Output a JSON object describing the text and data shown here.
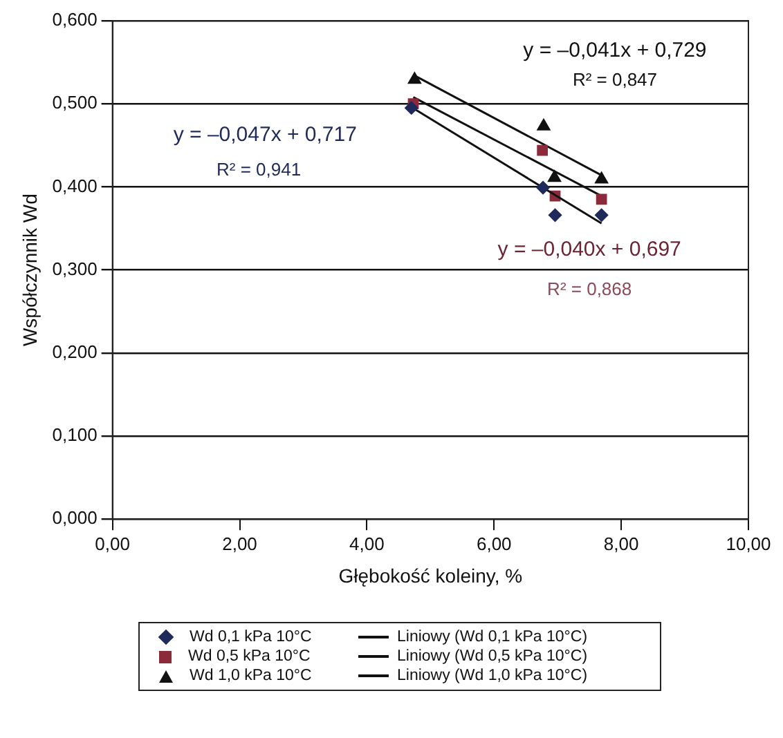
{
  "chart_data": {
    "type": "scatter",
    "xlabel": "Głębokość koleiny, %",
    "ylabel": "Współczynnik Wd",
    "xlim": [
      0,
      10
    ],
    "xticks": [
      {
        "value": 0,
        "label": "0,00"
      },
      {
        "value": 2,
        "label": "2,00"
      },
      {
        "value": 4,
        "label": "4,00"
      },
      {
        "value": 6,
        "label": "6,00"
      },
      {
        "value": 8,
        "label": "8,00"
      },
      {
        "value": 10,
        "label": "10,00"
      }
    ],
    "ylim": [
      0,
      0.6
    ],
    "yticks": [
      {
        "value": 0,
        "label": "0,000"
      },
      {
        "value": 0.1,
        "label": "0,100"
      },
      {
        "value": 0.2,
        "label": "0,200"
      },
      {
        "value": 0.3,
        "label": "0,300"
      },
      {
        "value": 0.4,
        "label": "0,400"
      },
      {
        "value": 0.5,
        "label": "0,500"
      },
      {
        "value": 0.6,
        "label": "0,600"
      }
    ],
    "grid": "y",
    "legend": "bottom",
    "series": [
      {
        "name": "Wd 0,1 kPa 10°C",
        "marker": "diamond",
        "color": "#1f2a5a",
        "x": [
          4.7,
          6.77,
          6.96,
          7.69
        ],
        "values": [
          0.495,
          0.399,
          0.366,
          0.366
        ]
      },
      {
        "name": "Liniowy (Wd 0,1 kPa 10°C)",
        "type": "line",
        "marker": "none",
        "color": "#111111",
        "x": [
          4.7,
          7.69
        ],
        "values": [
          0.496,
          0.356
        ]
      },
      {
        "name": "Wd 0,5 kPa 10°C",
        "marker": "square",
        "color": "#8b2a3a",
        "x": [
          4.73,
          6.76,
          6.96,
          7.69
        ],
        "values": [
          0.5,
          0.444,
          0.389,
          0.385
        ]
      },
      {
        "name": "Liniowy (Wd 0,5 kPa 10°C)",
        "type": "line",
        "marker": "none",
        "color": "#111111",
        "x": [
          4.73,
          7.69
        ],
        "values": [
          0.508,
          0.389
        ]
      },
      {
        "name": "Wd 1,0 kPa 10°C",
        "marker": "triangle",
        "color": "#111111",
        "x": [
          4.75,
          6.78,
          6.95,
          7.69
        ],
        "values": [
          0.529,
          0.473,
          0.411,
          0.409
        ]
      },
      {
        "name": "Liniowy (Wd 1,0 kPa 10°C)",
        "type": "line",
        "marker": "none",
        "color": "#111111",
        "x": [
          4.75,
          7.69
        ],
        "values": [
          0.534,
          0.414
        ]
      }
    ],
    "annotations": [
      "y = –0,041x + 0,729",
      "R² = 0,847",
      "y = –0,047x + 0,717",
      "R² = 0,941",
      "y = –0,040x + 0,697",
      "R² = 0,868"
    ]
  }
}
